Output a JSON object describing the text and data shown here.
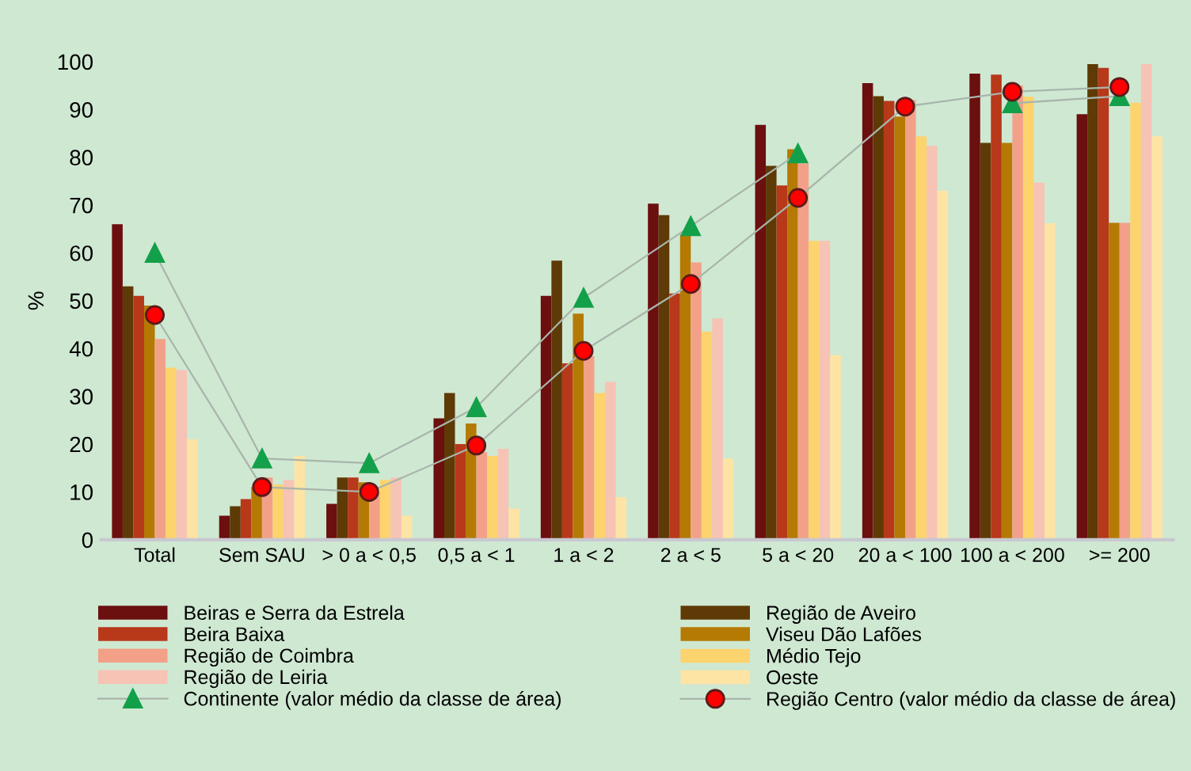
{
  "chart_data": {
    "type": "bar",
    "ylabel": "%",
    "categories": [
      "Total",
      "Sem SAU",
      "> 0 a < 0,5",
      "0,5 a < 1",
      "1 a < 2",
      "2 a < 5",
      "5 a < 20",
      "20 a < 100",
      "100 a < 200",
      ">= 200"
    ],
    "series": [
      {
        "name": "Beiras e Serra da Estrela",
        "color": "#6b0f0f",
        "values": [
          66,
          5,
          7.5,
          25.4,
          51,
          70.3,
          86.8,
          95.5,
          97.5,
          89
        ]
      },
      {
        "name": "Região de Aveiro",
        "color": "#5e3a06",
        "values": [
          53,
          7,
          13,
          30.7,
          58.4,
          67.9,
          78.2,
          92.8,
          83,
          99.5
        ]
      },
      {
        "name": "Beira Baixa",
        "color": "#b8381a",
        "values": [
          51,
          8.5,
          13,
          20,
          36.9,
          51.5,
          74.1,
          91.8,
          97.3,
          98.7
        ]
      },
      {
        "name": "Viseu Dão Lafões",
        "color": "#b47a04",
        "values": [
          49,
          11,
          12,
          24.3,
          47.3,
          63.8,
          81.7,
          88.5,
          83,
          66.3
        ]
      },
      {
        "name": "Região de Coimbra",
        "color": "#f2a188",
        "values": [
          42,
          13,
          10,
          18.3,
          38.4,
          58,
          78.7,
          92,
          95,
          66.3
        ]
      },
      {
        "name": "Médio Tejo",
        "color": "#fdd36e",
        "values": [
          36,
          11.5,
          12.5,
          17.5,
          30.7,
          43.5,
          62.5,
          84.4,
          92.7,
          91.4
        ]
      },
      {
        "name": "Região de Leiria",
        "color": "#f6c3b4",
        "values": [
          35.5,
          12.5,
          13,
          19,
          33,
          46.3,
          62.5,
          82.4,
          74.7,
          99.5
        ]
      },
      {
        "name": "Oeste",
        "color": "#fde4a4",
        "values": [
          21,
          17.5,
          5,
          6.5,
          8.9,
          17,
          38.6,
          73,
          66.2,
          84.4
        ]
      },
      {
        "name": "Continente (valor médio da classe de área)",
        "type": "line",
        "marker": "triangle",
        "color": "#13a04a",
        "values": [
          60,
          17,
          16,
          27.7,
          50.6,
          65.6,
          80.8,
          null,
          91.3,
          92.8
        ]
      },
      {
        "name": "Região Centro (valor médio da classe de área)",
        "type": "line",
        "marker": "circle",
        "color": "#ff0000",
        "values": [
          47,
          11,
          10,
          19.7,
          39.5,
          53.5,
          71.5,
          90.6,
          93.7,
          94.7
        ]
      }
    ],
    "ylim": [
      0,
      100
    ],
    "yticks": [
      0,
      10,
      20,
      30,
      40,
      50,
      60,
      70,
      80,
      90,
      100
    ],
    "grid": false,
    "legend": "bottom"
  }
}
